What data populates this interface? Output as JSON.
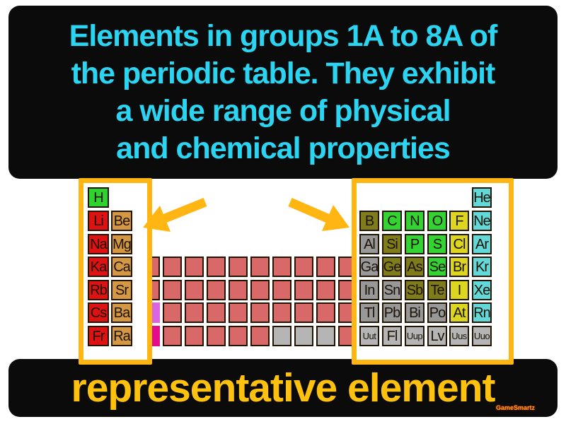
{
  "definition": {
    "lines": [
      "Elements in groups 1A to 8A of",
      "the periodic table. They exhibit",
      "a wide range of physical",
      "and chemical properties"
    ]
  },
  "term": {
    "label": "representative element"
  },
  "watermark": "GameSmartz",
  "colors": {
    "accent": "#ffb612",
    "definition_text": "#2bd5f2",
    "term_text": "#fec10d",
    "panel_bg": "#0b0b0b",
    "cell_border": "#241403",
    "categories": {
      "hydrogen": "#2ed32e",
      "alkali": "#de1212",
      "alkaline": "#d49844",
      "transition": "#d96868",
      "lanthanide": "#d966e0",
      "actinide": "#e30c8c",
      "metalloid": "#7f7c1c",
      "nonmetal": "#33d333",
      "halogen": "#dcd61f",
      "noble": "#63d8d8",
      "post_transition": "#989898",
      "unknown": "#b5b5b5"
    }
  },
  "table": {
    "left": [
      {
        "row": 1,
        "col": 1,
        "symbol": "H",
        "category": "hydrogen"
      },
      {
        "row": 2,
        "col": 1,
        "symbol": "Li",
        "category": "alkali"
      },
      {
        "row": 2,
        "col": 2,
        "symbol": "Be",
        "category": "alkaline"
      },
      {
        "row": 3,
        "col": 1,
        "symbol": "Na",
        "category": "alkali"
      },
      {
        "row": 3,
        "col": 2,
        "symbol": "Mg",
        "category": "alkaline"
      },
      {
        "row": 4,
        "col": 1,
        "symbol": "Ka",
        "category": "alkali"
      },
      {
        "row": 4,
        "col": 2,
        "symbol": "Ca",
        "category": "alkaline"
      },
      {
        "row": 5,
        "col": 1,
        "symbol": "Rb",
        "category": "alkali"
      },
      {
        "row": 5,
        "col": 2,
        "symbol": "Sr",
        "category": "alkaline"
      },
      {
        "row": 6,
        "col": 1,
        "symbol": "Cs",
        "category": "alkali"
      },
      {
        "row": 6,
        "col": 2,
        "symbol": "Ba",
        "category": "alkaline"
      },
      {
        "row": 7,
        "col": 1,
        "symbol": "Fr",
        "category": "alkali"
      },
      {
        "row": 7,
        "col": 2,
        "symbol": "Ra",
        "category": "alkaline"
      }
    ],
    "middle": [
      {
        "row": 4,
        "cells": [
          "transition",
          "transition",
          "transition",
          "transition",
          "transition",
          "transition",
          "transition",
          "transition",
          "transition",
          "transition"
        ]
      },
      {
        "row": 5,
        "cells": [
          "transition",
          "transition",
          "transition",
          "transition",
          "transition",
          "transition",
          "transition",
          "transition",
          "transition",
          "transition"
        ]
      },
      {
        "row": 6,
        "cells": [
          "lanthanide",
          "transition",
          "transition",
          "transition",
          "transition",
          "transition",
          "transition",
          "transition",
          "transition",
          "transition"
        ]
      },
      {
        "row": 7,
        "cells": [
          "actinide",
          "transition",
          "transition",
          "transition",
          "transition",
          "transition",
          "unknown",
          "unknown",
          "unknown",
          "transition"
        ]
      }
    ],
    "right": [
      {
        "row": 1,
        "cells": [
          null,
          null,
          null,
          null,
          null,
          {
            "symbol": "He",
            "category": "noble"
          }
        ]
      },
      {
        "row": 2,
        "cells": [
          {
            "symbol": "B",
            "category": "metalloid"
          },
          {
            "symbol": "C",
            "category": "nonmetal"
          },
          {
            "symbol": "N",
            "category": "nonmetal"
          },
          {
            "symbol": "O",
            "category": "nonmetal"
          },
          {
            "symbol": "F",
            "category": "halogen"
          },
          {
            "symbol": "Ne",
            "category": "noble"
          }
        ]
      },
      {
        "row": 3,
        "cells": [
          {
            "symbol": "Al",
            "category": "post_transition"
          },
          {
            "symbol": "Si",
            "category": "metalloid"
          },
          {
            "symbol": "P",
            "category": "nonmetal"
          },
          {
            "symbol": "S",
            "category": "nonmetal"
          },
          {
            "symbol": "Cl",
            "category": "halogen"
          },
          {
            "symbol": "Ar",
            "category": "noble"
          }
        ]
      },
      {
        "row": 4,
        "cells": [
          {
            "symbol": "Ga",
            "category": "post_transition"
          },
          {
            "symbol": "Ge",
            "category": "metalloid"
          },
          {
            "symbol": "As",
            "category": "metalloid"
          },
          {
            "symbol": "Se",
            "category": "nonmetal"
          },
          {
            "symbol": "Br",
            "category": "halogen"
          },
          {
            "symbol": "Kr",
            "category": "noble"
          }
        ]
      },
      {
        "row": 5,
        "cells": [
          {
            "symbol": "In",
            "category": "post_transition"
          },
          {
            "symbol": "Sn",
            "category": "post_transition"
          },
          {
            "symbol": "Sb",
            "category": "metalloid"
          },
          {
            "symbol": "Te",
            "category": "metalloid"
          },
          {
            "symbol": "I",
            "category": "halogen"
          },
          {
            "symbol": "Xe",
            "category": "noble"
          }
        ]
      },
      {
        "row": 6,
        "cells": [
          {
            "symbol": "Tl",
            "category": "post_transition"
          },
          {
            "symbol": "Pb",
            "category": "post_transition"
          },
          {
            "symbol": "Bi",
            "category": "post_transition"
          },
          {
            "symbol": "Po",
            "category": "post_transition"
          },
          {
            "symbol": "At",
            "category": "halogen"
          },
          {
            "symbol": "Rn",
            "category": "noble"
          }
        ]
      },
      {
        "row": 7,
        "cells": [
          {
            "symbol": "Uut",
            "category": "unknown"
          },
          {
            "symbol": "Fl",
            "category": "unknown"
          },
          {
            "symbol": "Uup",
            "category": "unknown"
          },
          {
            "symbol": "Lv",
            "category": "unknown"
          },
          {
            "symbol": "Uus",
            "category": "unknown"
          },
          {
            "symbol": "Uuo",
            "category": "unknown"
          }
        ]
      }
    ]
  }
}
